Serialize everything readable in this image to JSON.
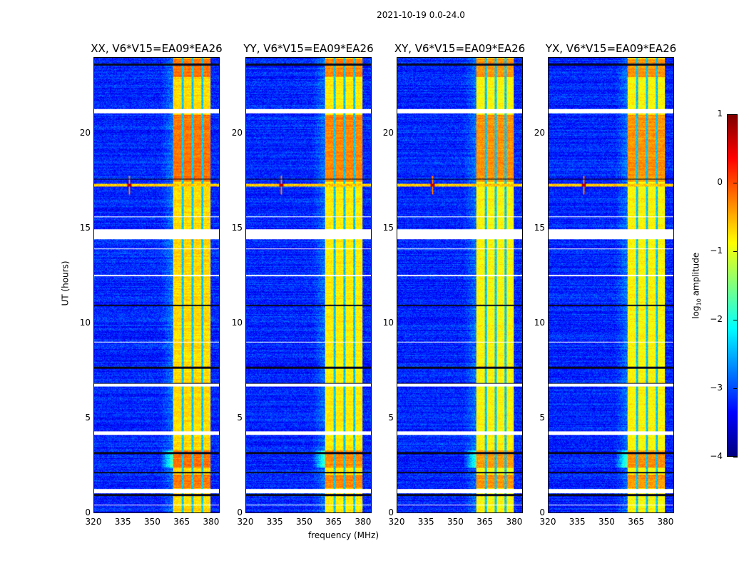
{
  "chart_data": {
    "type": "heatmap",
    "title": "2021-10-19 0.0-24.0",
    "xlabel": "frequency (MHz)",
    "ylabel": "UT (hours)",
    "xlim": [
      320,
      384.4
    ],
    "ylim": [
      0,
      24
    ],
    "xticks": [
      320,
      335,
      350,
      365,
      380
    ],
    "yticks": [
      0,
      5,
      10,
      15,
      20
    ],
    "panels": [
      {
        "title": "XX, V6*V15=EA09*EA26",
        "band_level": -0.7
      },
      {
        "title": "YY, V6*V15=EA09*EA26",
        "band_level": -0.8
      },
      {
        "title": "XY, V6*V15=EA09*EA26",
        "band_level": -0.85
      },
      {
        "title": "YX, V6*V15=EA09*EA26",
        "band_level": -0.85
      }
    ],
    "rfi_band_mhz": [
      360.7,
      380.0
    ],
    "rfi_gaps_mhz": [
      365.5,
      370.5,
      375.6
    ],
    "flagged_hours": [
      [
        21.1,
        21.3
      ],
      [
        14.45,
        14.95
      ],
      [
        6.65,
        6.8
      ],
      [
        4.1,
        4.3
      ],
      [
        1.05,
        1.25
      ],
      [
        15.6,
        15.65
      ],
      [
        13.9,
        13.95
      ],
      [
        12.5,
        12.55
      ],
      [
        9.0,
        9.05
      ],
      [
        0.4,
        0.45
      ]
    ],
    "dark_hours": [
      [
        23.6,
        23.7
      ],
      [
        17.6,
        17.65
      ],
      [
        10.9,
        11.0
      ],
      [
        7.6,
        7.7
      ],
      [
        6.75,
        6.85
      ],
      [
        3.1,
        3.2
      ],
      [
        2.1,
        2.15
      ],
      [
        0.9,
        1.0
      ]
    ],
    "rfi_line_hour": 17.3,
    "rfi_spike_mhz": 338,
    "colorbar": {
      "label_prefix": "log",
      "label_sub": "10",
      "label_suffix": " amplitude",
      "range": [
        -4,
        1
      ],
      "ticks": [
        -4,
        -3,
        -2,
        -1,
        0,
        1
      ],
      "colormap": "jet"
    }
  }
}
